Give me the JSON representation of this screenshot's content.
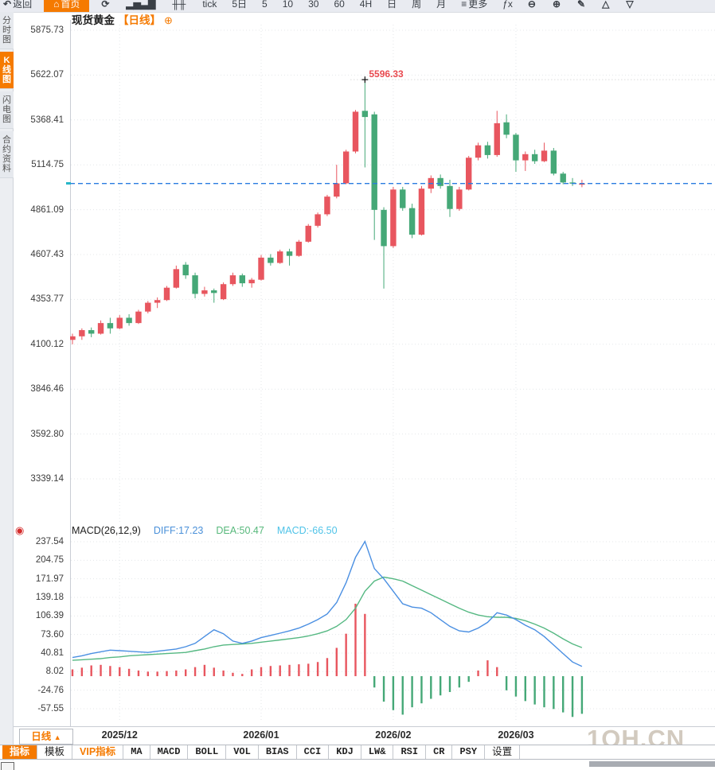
{
  "colors": {
    "up": "#e8565f",
    "down": "#45a877",
    "diff_line": "#4a8fe2",
    "dea_line": "#55b882",
    "macd_value_text": "#4fc3e8",
    "diff_text": "#4a90d9",
    "dea_text": "#57b87b",
    "accent": "#f57a00",
    "price_line": "#2a7ce0",
    "peak": "#e84a50",
    "grid": "#e4e7ea"
  },
  "toolbar": {
    "items": [
      {
        "key": "back-button",
        "glyph": "↶",
        "text": "返回"
      },
      {
        "key": "home-button",
        "glyph": "⌂",
        "text": "首页",
        "accent": true
      },
      {
        "key": "refresh-button",
        "glyph": "⟳",
        "text": ""
      },
      {
        "key": "bar-chart-button",
        "glyph": "▂▅▃▇",
        "text": ""
      },
      {
        "key": "candlestick-button",
        "glyph": "╫╫",
        "text": ""
      },
      {
        "key": "tick-button",
        "text": "tick"
      },
      {
        "key": "period-5d-button",
        "text": "5日"
      },
      {
        "key": "period-5-button",
        "text": "5"
      },
      {
        "key": "period-10-button",
        "text": "10"
      },
      {
        "key": "period-30-button",
        "text": "30"
      },
      {
        "key": "period-60-button",
        "text": "60"
      },
      {
        "key": "period-4h-button",
        "text": "4H"
      },
      {
        "key": "period-day-button",
        "text": "日"
      },
      {
        "key": "period-week-button",
        "text": "周"
      },
      {
        "key": "period-month-button",
        "text": "月"
      },
      {
        "key": "more-button",
        "glyph": "≡",
        "text": "更多"
      },
      {
        "key": "fx-indicator-button",
        "text": "ƒx"
      },
      {
        "key": "zoom-out-button",
        "glyph": "⊖",
        "text": ""
      },
      {
        "key": "zoom-in-button",
        "glyph": "⊕",
        "text": ""
      },
      {
        "key": "draw-pencil-button",
        "glyph": "✎",
        "text": ""
      },
      {
        "key": "triangle-up-button",
        "glyph": "△",
        "text": ""
      },
      {
        "key": "triangle-down-button",
        "glyph": "▽",
        "text": ""
      }
    ]
  },
  "sidebar": {
    "tabs": [
      {
        "key": "time-share-chart",
        "label": "分时图",
        "active": false
      },
      {
        "key": "kline-chart",
        "label": "K线图",
        "active": true
      },
      {
        "key": "flash-chart",
        "label": "闪电图",
        "active": false
      },
      {
        "key": "contract-info",
        "label": "合约资料",
        "active": false
      }
    ]
  },
  "chart_header": {
    "symbol": "现货黄金",
    "period_tag": "【日线】",
    "add_icon": "⊕"
  },
  "macd_legend": {
    "title": "MACD(26,12,9)",
    "diff": "DIFF:17.23",
    "dea": "DEA:50.47",
    "macd": "MACD:-66.50"
  },
  "peak_annotation": {
    "label": "5596.33",
    "value": 5596.33
  },
  "current_price": 5009,
  "price_axis_labels": [
    "5875.73",
    "5622.07",
    "5368.41",
    "5114.75",
    "4861.09",
    "4607.43",
    "4353.77",
    "4100.12",
    "3846.46",
    "3592.80",
    "3339.14"
  ],
  "macd_axis_labels": [
    "237.54",
    "204.75",
    "171.97",
    "139.18",
    "106.39",
    "73.60",
    "40.81",
    "8.02",
    "-24.76",
    "-57.55"
  ],
  "x_axis": {
    "period_selector": "日线",
    "period_arrow": "▲",
    "months": [
      {
        "label": "2025/12",
        "index": 5
      },
      {
        "label": "2026/01",
        "index": 20
      },
      {
        "label": "2026/02",
        "index": 34
      },
      {
        "label": "2026/03",
        "index": 47
      }
    ]
  },
  "bottom_tabs": [
    {
      "key": "indicators",
      "label": "指标",
      "active": true
    },
    {
      "key": "templates",
      "label": "模板"
    },
    {
      "key": "vip-indicators",
      "label": "VIP指标",
      "vip": true
    },
    {
      "key": "ma",
      "label": "MA",
      "mono": true
    },
    {
      "key": "macd",
      "label": "MACD",
      "mono": true
    },
    {
      "key": "boll",
      "label": "BOLL",
      "mono": true
    },
    {
      "key": "vol",
      "label": "VOL",
      "mono": true
    },
    {
      "key": "bias",
      "label": "BIAS",
      "mono": true
    },
    {
      "key": "cci",
      "label": "CCI",
      "mono": true
    },
    {
      "key": "kdj",
      "label": "KDJ",
      "mono": true
    },
    {
      "key": "lw",
      "label": "LW&",
      "mono": true
    },
    {
      "key": "rsi",
      "label": "RSI",
      "mono": true
    },
    {
      "key": "cr",
      "label": "CR",
      "mono": true
    },
    {
      "key": "psy",
      "label": "PSY",
      "mono": true
    },
    {
      "key": "settings",
      "label": "设置"
    }
  ],
  "watermark": "1QH.CN",
  "chart_data": {
    "type": "candlestick+macd",
    "title": "现货黄金 日线",
    "price_axis": {
      "top": 5875.73,
      "step": 253.66,
      "labels_count": 11
    },
    "macd_axis": {
      "top": 237.54,
      "step": 32.785,
      "labels_count": 10
    },
    "candles": [
      [
        4125,
        4160,
        4100,
        4145
      ],
      [
        4145,
        4190,
        4125,
        4180
      ],
      [
        4180,
        4195,
        4140,
        4160
      ],
      [
        4160,
        4235,
        4155,
        4220
      ],
      [
        4220,
        4250,
        4160,
        4190
      ],
      [
        4190,
        4265,
        4185,
        4250
      ],
      [
        4250,
        4270,
        4205,
        4220
      ],
      [
        4220,
        4295,
        4215,
        4285
      ],
      [
        4285,
        4345,
        4275,
        4335
      ],
      [
        4335,
        4365,
        4305,
        4350
      ],
      [
        4350,
        4430,
        4345,
        4420
      ],
      [
        4420,
        4545,
        4415,
        4525
      ],
      [
        4550,
        4565,
        4470,
        4490
      ],
      [
        4490,
        4505,
        4360,
        4385
      ],
      [
        4385,
        4425,
        4370,
        4405
      ],
      [
        4405,
        4415,
        4335,
        4390
      ],
      [
        4355,
        4450,
        4350,
        4440
      ],
      [
        4440,
        4505,
        4430,
        4490
      ],
      [
        4490,
        4500,
        4425,
        4445
      ],
      [
        4445,
        4475,
        4420,
        4465
      ],
      [
        4465,
        4605,
        4460,
        4590
      ],
      [
        4590,
        4610,
        4545,
        4560
      ],
      [
        4560,
        4635,
        4555,
        4625
      ],
      [
        4625,
        4640,
        4545,
        4600
      ],
      [
        4600,
        4690,
        4595,
        4680
      ],
      [
        4680,
        4780,
        4675,
        4770
      ],
      [
        4770,
        4845,
        4760,
        4835
      ],
      [
        4835,
        4945,
        4825,
        4935
      ],
      [
        4935,
        5115,
        4925,
        5010
      ],
      [
        5010,
        5200,
        5005,
        5190
      ],
      [
        5190,
        5425,
        5180,
        5415
      ],
      [
        5420,
        5596.33,
        5100,
        5385
      ],
      [
        5400,
        5415,
        4690,
        4860
      ],
      [
        4860,
        4875,
        4415,
        4655
      ],
      [
        4655,
        4990,
        4645,
        4975
      ],
      [
        4975,
        4990,
        4855,
        4870
      ],
      [
        4870,
        4895,
        4700,
        4720
      ],
      [
        4720,
        4995,
        4715,
        4980
      ],
      [
        4980,
        5055,
        4955,
        5040
      ],
      [
        5040,
        5060,
        4980,
        4995
      ],
      [
        4995,
        5030,
        4820,
        4865
      ],
      [
        4865,
        4990,
        4855,
        4975
      ],
      [
        4975,
        5165,
        4970,
        5155
      ],
      [
        5155,
        5240,
        5140,
        5225
      ],
      [
        5225,
        5245,
        5150,
        5170
      ],
      [
        5170,
        5420,
        5160,
        5350
      ],
      [
        5355,
        5400,
        5265,
        5285
      ],
      [
        5285,
        5295,
        5075,
        5140
      ],
      [
        5140,
        5190,
        5080,
        5175
      ],
      [
        5175,
        5200,
        5120,
        5135
      ],
      [
        5135,
        5240,
        5130,
        5195
      ],
      [
        5195,
        5210,
        5055,
        5065
      ],
      [
        5065,
        5075,
        5005,
        5015
      ],
      [
        5015,
        5040,
        4995,
        5010
      ],
      [
        5005,
        5030,
        4988,
        5009
      ]
    ],
    "macd": {
      "diff": [
        33,
        36,
        40,
        43,
        46,
        45,
        44,
        43,
        42,
        44,
        46,
        48,
        52,
        58,
        70,
        82,
        75,
        62,
        58,
        62,
        68,
        72,
        76,
        80,
        85,
        92,
        100,
        110,
        130,
        165,
        210,
        238,
        190,
        172,
        150,
        128,
        122,
        120,
        112,
        100,
        88,
        80,
        78,
        85,
        95,
        112,
        108,
        100,
        90,
        82,
        70,
        55,
        40,
        25,
        17.23
      ],
      "dea": [
        28,
        29,
        30,
        31,
        33,
        34,
        36,
        37,
        38,
        39,
        40,
        41,
        42,
        45,
        48,
        52,
        55,
        56,
        57,
        58,
        60,
        62,
        64,
        66,
        68,
        71,
        75,
        80,
        88,
        100,
        120,
        150,
        168,
        175,
        172,
        168,
        160,
        152,
        144,
        136,
        128,
        120,
        113,
        108,
        105,
        104,
        104,
        102,
        98,
        92,
        85,
        76,
        66,
        57,
        50.47
      ],
      "hist": [
        12,
        15,
        19,
        20,
        18,
        16,
        13,
        10,
        8,
        8,
        9,
        10,
        12,
        16,
        20,
        15,
        10,
        6,
        4,
        12,
        16,
        18,
        19,
        20,
        21,
        22,
        25,
        32,
        50,
        75,
        128,
        110,
        -20,
        -45,
        -60,
        -68,
        -55,
        -48,
        -40,
        -34,
        -28,
        -20,
        -10,
        10,
        28,
        16,
        -25,
        -36,
        -44,
        -50,
        -55,
        -58,
        -64,
        -72,
        -66.5
      ]
    }
  }
}
